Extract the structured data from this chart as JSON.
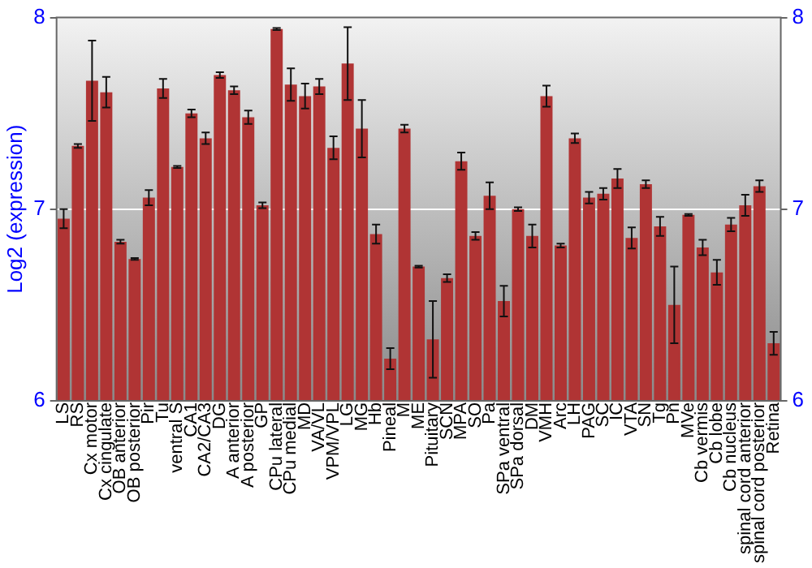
{
  "chart_data": {
    "type": "bar",
    "ylabel": "Log2 (expression)",
    "categories": [
      "LS",
      "RS",
      "Cx motor",
      "Cx cingulate",
      "OB anterior",
      "OB posterior",
      "Pir",
      "Tu",
      "ventral S",
      "CA1",
      "CA2/CA3",
      "DG",
      "A anterior",
      "A posterior",
      "GP",
      "CPu lateral",
      "CPu medial",
      "MD",
      "VA/VL",
      "VPM/VPL",
      "LG",
      "MG",
      "Hb",
      "Pineal",
      "M",
      "ME",
      "Pituitary",
      "SCN",
      "MPA",
      "SO",
      "Pa",
      "SPa ventral",
      "SPa dorsal",
      "DM",
      "VMH",
      "Arc",
      "LH",
      "PAG",
      "SC",
      "IC",
      "VTA",
      "SN",
      "Tg",
      "Pn",
      "MVe",
      "Cb vermis",
      "Cb lobe",
      "Cb nucleus",
      "spinal cord anterior",
      "spinal cord posterior",
      "Retina"
    ],
    "values": [
      6.95,
      7.33,
      7.67,
      7.61,
      6.83,
      6.74,
      7.06,
      7.63,
      7.22,
      7.5,
      7.37,
      7.7,
      7.62,
      7.48,
      7.02,
      7.94,
      7.65,
      7.59,
      7.64,
      7.32,
      7.76,
      7.42,
      6.87,
      6.22,
      7.42,
      6.7,
      6.32,
      6.64,
      7.25,
      6.86,
      7.07,
      6.52,
      7.0,
      6.86,
      7.59,
      6.81,
      7.37,
      7.06,
      7.08,
      7.16,
      6.85,
      7.13,
      6.91,
      6.5,
      6.97,
      6.8,
      6.67,
      6.92,
      7.02,
      7.12,
      6.3
    ],
    "errors": [
      0.05,
      0.01,
      0.21,
      0.08,
      0.01,
      0.005,
      0.04,
      0.05,
      0.005,
      0.02,
      0.03,
      0.015,
      0.02,
      0.035,
      0.015,
      0.005,
      0.085,
      0.065,
      0.04,
      0.06,
      0.19,
      0.15,
      0.05,
      0.055,
      0.02,
      0.005,
      0.2,
      0.02,
      0.045,
      0.02,
      0.07,
      0.08,
      0.01,
      0.06,
      0.055,
      0.01,
      0.025,
      0.03,
      0.03,
      0.05,
      0.055,
      0.02,
      0.05,
      0.2,
      0.005,
      0.04,
      0.065,
      0.035,
      0.055,
      0.03,
      0.06
    ],
    "color": "#b03434",
    "ylim": [
      6,
      8
    ],
    "yticks": [
      6,
      7,
      8
    ],
    "y2lim": [
      6,
      8
    ],
    "y2ticks": [
      6,
      7,
      8
    ],
    "grid": "y"
  }
}
